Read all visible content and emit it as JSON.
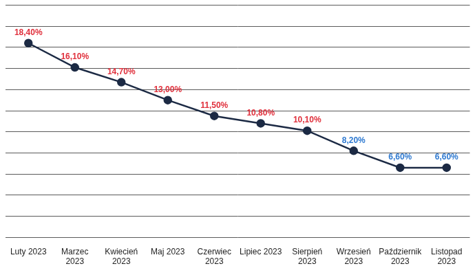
{
  "chart_data": {
    "type": "line",
    "categories": [
      "Luty 2023",
      "Marzec 2023",
      "Kwiecień 2023",
      "Maj 2023",
      "Czerwiec 2023",
      "Lipiec 2023",
      "Sierpień 2023",
      "Wrzesień 2023",
      "Październik 2023",
      "Listopad 2023"
    ],
    "values": [
      18.4,
      16.1,
      14.7,
      13.0,
      11.5,
      10.8,
      10.1,
      8.2,
      6.6,
      6.6
    ],
    "value_labels": [
      "18,40%",
      "16,10%",
      "14,70%",
      "13,00%",
      "11,50%",
      "10,80%",
      "10,10%",
      "8,20%",
      "6,60%",
      "6,60%"
    ],
    "color": "#1c2a44",
    "colors": [
      "#e0303c",
      "#e0303c",
      "#e0303c",
      "#e0303c",
      "#e0303c",
      "#e0303c",
      "#e0303c",
      "#2f7ad1",
      "#2f7ad1",
      "#2f7ad1"
    ],
    "marker": "circle",
    "line_style": "solid",
    "ylim": [
      0,
      22
    ],
    "yticks": [
      0,
      2,
      4,
      6,
      8,
      10,
      12,
      14,
      16,
      18,
      20,
      22
    ],
    "grid": true,
    "data_labels": true,
    "tick_labels": "x"
  }
}
